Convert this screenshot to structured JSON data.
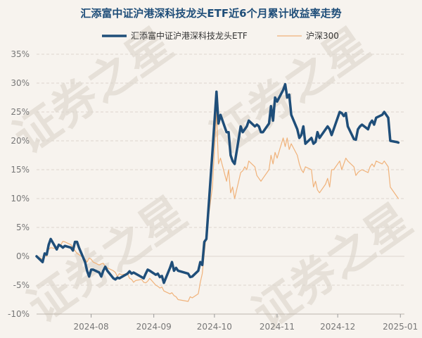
{
  "chart_data": {
    "type": "line",
    "title": "汇添富中证沪港深科技龙头ETF近6个月累计收益率走势",
    "watermark": "证券之星",
    "ylim": [
      -10,
      35
    ],
    "yticks": [
      35,
      30,
      25,
      20,
      15,
      10,
      5,
      0,
      -5,
      -10
    ],
    "ytick_labels": [
      "35%",
      "30%",
      "25%",
      "20%",
      "15%",
      "10%",
      "5%",
      "0%",
      "-5%",
      "-10%"
    ],
    "xlim": [
      "2024-07-05",
      "2025-01-03"
    ],
    "xticks": [
      "2024-08-01",
      "2024-09-01",
      "2024-10-01",
      "2024-11-01",
      "2024-12-01",
      "2025-01-01"
    ],
    "xtick_labels": [
      "2024-08",
      "2024-09",
      "2024-10",
      "2024-11",
      "2024-12",
      "2025-01"
    ],
    "grid": true,
    "legend_position": "top-center",
    "series": [
      {
        "name": "汇添富中证沪港深科技龙头ETF",
        "color": "#1f4e79",
        "points": [
          [
            "2024-07-05",
            0.0
          ],
          [
            "2024-07-08",
            -1.0
          ],
          [
            "2024-07-09",
            0.5
          ],
          [
            "2024-07-10",
            0.3
          ],
          [
            "2024-07-11",
            2.0
          ],
          [
            "2024-07-12",
            3.0
          ],
          [
            "2024-07-15",
            1.2
          ],
          [
            "2024-07-16",
            2.0
          ],
          [
            "2024-07-17",
            1.8
          ],
          [
            "2024-07-18",
            1.5
          ],
          [
            "2024-07-19",
            1.8
          ],
          [
            "2024-07-22",
            1.5
          ],
          [
            "2024-07-23",
            1.0
          ],
          [
            "2024-07-24",
            2.5
          ],
          [
            "2024-07-25",
            2.5
          ],
          [
            "2024-07-26",
            1.5
          ],
          [
            "2024-07-29",
            -1.0
          ],
          [
            "2024-07-30",
            -2.5
          ],
          [
            "2024-07-31",
            -3.5
          ],
          [
            "2024-08-01",
            -2.3
          ],
          [
            "2024-08-02",
            -2.3
          ],
          [
            "2024-08-05",
            -2.8
          ],
          [
            "2024-08-06",
            -3.5
          ],
          [
            "2024-08-07",
            -2.5
          ],
          [
            "2024-08-08",
            -1.8
          ],
          [
            "2024-08-09",
            -2.5
          ],
          [
            "2024-08-12",
            -3.8
          ],
          [
            "2024-08-13",
            -4.0
          ],
          [
            "2024-08-14",
            -3.7
          ],
          [
            "2024-08-15",
            -3.8
          ],
          [
            "2024-08-16",
            -3.6
          ],
          [
            "2024-08-19",
            -3.0
          ],
          [
            "2024-08-20",
            -2.6
          ],
          [
            "2024-08-21",
            -3.0
          ],
          [
            "2024-08-22",
            -2.8
          ],
          [
            "2024-08-23",
            -3.0
          ],
          [
            "2024-08-26",
            -3.6
          ],
          [
            "2024-08-27",
            -3.8
          ],
          [
            "2024-08-28",
            -3.0
          ],
          [
            "2024-08-29",
            -2.3
          ],
          [
            "2024-08-30",
            -2.5
          ],
          [
            "2024-09-02",
            -3.2
          ],
          [
            "2024-09-03",
            -3.0
          ],
          [
            "2024-09-04",
            -3.6
          ],
          [
            "2024-09-05",
            -3.4
          ],
          [
            "2024-09-06",
            -4.6
          ],
          [
            "2024-09-09",
            -2.0
          ],
          [
            "2024-09-10",
            -1.0
          ],
          [
            "2024-09-11",
            -2.5
          ],
          [
            "2024-09-12",
            -2.0
          ],
          [
            "2024-09-13",
            -2.5
          ],
          [
            "2024-09-18",
            -3.0
          ],
          [
            "2024-09-19",
            -3.6
          ],
          [
            "2024-09-20",
            -3.5
          ],
          [
            "2024-09-23",
            -2.5
          ],
          [
            "2024-09-24",
            -1.0
          ],
          [
            "2024-09-25",
            -1.5
          ],
          [
            "2024-09-26",
            2.5
          ],
          [
            "2024-09-27",
            3.0
          ],
          [
            "2024-09-30",
            18.0
          ],
          [
            "2024-10-02",
            28.5
          ],
          [
            "2024-10-03",
            23.0
          ],
          [
            "2024-10-04",
            24.5
          ],
          [
            "2024-10-07",
            21.5
          ],
          [
            "2024-10-08",
            21.5
          ],
          [
            "2024-10-09",
            17.5
          ],
          [
            "2024-10-10",
            16.5
          ],
          [
            "2024-10-11",
            16.0
          ],
          [
            "2024-10-14",
            22.5
          ],
          [
            "2024-10-15",
            21.5
          ],
          [
            "2024-10-16",
            22.0
          ],
          [
            "2024-10-17",
            22.5
          ],
          [
            "2024-10-18",
            23.5
          ],
          [
            "2024-10-21",
            22.5
          ],
          [
            "2024-10-22",
            22.8
          ],
          [
            "2024-10-23",
            22.5
          ],
          [
            "2024-10-24",
            21.5
          ],
          [
            "2024-10-25",
            21.5
          ],
          [
            "2024-10-28",
            23.0
          ],
          [
            "2024-10-29",
            26.0
          ],
          [
            "2024-10-30",
            23.5
          ],
          [
            "2024-10-31",
            27.5
          ],
          [
            "2024-11-01",
            26.8
          ],
          [
            "2024-11-04",
            28.8
          ],
          [
            "2024-11-05",
            29.8
          ],
          [
            "2024-11-06",
            27.5
          ],
          [
            "2024-11-07",
            28.0
          ],
          [
            "2024-11-08",
            24.5
          ],
          [
            "2024-11-11",
            22.0
          ],
          [
            "2024-11-12",
            20.5
          ],
          [
            "2024-11-13",
            21.0
          ],
          [
            "2024-11-14",
            22.5
          ],
          [
            "2024-11-15",
            19.5
          ],
          [
            "2024-11-18",
            20.5
          ],
          [
            "2024-11-19",
            19.5
          ],
          [
            "2024-11-20",
            19.8
          ],
          [
            "2024-11-21",
            21.5
          ],
          [
            "2024-11-22",
            20.5
          ],
          [
            "2024-11-25",
            22.0
          ],
          [
            "2024-11-26",
            22.5
          ],
          [
            "2024-11-27",
            22.0
          ],
          [
            "2024-11-28",
            21.0
          ],
          [
            "2024-11-29",
            22.0
          ],
          [
            "2024-12-02",
            25.0
          ],
          [
            "2024-12-03",
            24.8
          ],
          [
            "2024-12-04",
            24.3
          ],
          [
            "2024-12-05",
            24.8
          ],
          [
            "2024-12-06",
            22.5
          ],
          [
            "2024-12-09",
            20.3
          ],
          [
            "2024-12-10",
            20.2
          ],
          [
            "2024-12-11",
            22.0
          ],
          [
            "2024-12-12",
            22.5
          ],
          [
            "2024-12-13",
            22.8
          ],
          [
            "2024-12-16",
            22.0
          ],
          [
            "2024-12-17",
            23.0
          ],
          [
            "2024-12-18",
            23.5
          ],
          [
            "2024-12-19",
            22.8
          ],
          [
            "2024-12-20",
            24.0
          ],
          [
            "2024-12-23",
            24.5
          ],
          [
            "2024-12-24",
            25.0
          ],
          [
            "2024-12-26",
            24.0
          ],
          [
            "2024-12-27",
            20.0
          ],
          [
            "2024-12-30",
            19.8
          ],
          [
            "2024-12-31",
            19.7
          ]
        ]
      },
      {
        "name": "沪深300",
        "color": "#f0b27a",
        "points": [
          [
            "2024-07-05",
            0.0
          ],
          [
            "2024-07-08",
            -0.5
          ],
          [
            "2024-07-09",
            0.2
          ],
          [
            "2024-07-10",
            0.0
          ],
          [
            "2024-07-11",
            1.2
          ],
          [
            "2024-07-12",
            1.5
          ],
          [
            "2024-07-15",
            1.3
          ],
          [
            "2024-07-16",
            2.0
          ],
          [
            "2024-07-17",
            2.0
          ],
          [
            "2024-07-18",
            2.6
          ],
          [
            "2024-07-19",
            2.5
          ],
          [
            "2024-07-22",
            2.0
          ],
          [
            "2024-07-23",
            1.5
          ],
          [
            "2024-07-24",
            1.0
          ],
          [
            "2024-07-25",
            0.5
          ],
          [
            "2024-07-26",
            0.3
          ],
          [
            "2024-07-29",
            -0.5
          ],
          [
            "2024-07-30",
            -1.0
          ],
          [
            "2024-07-31",
            -0.3
          ],
          [
            "2024-08-01",
            -0.5
          ],
          [
            "2024-08-02",
            -1.0
          ],
          [
            "2024-08-05",
            -1.5
          ],
          [
            "2024-08-06",
            -1.3
          ],
          [
            "2024-08-07",
            -1.2
          ],
          [
            "2024-08-08",
            -1.8
          ],
          [
            "2024-08-09",
            -2.0
          ],
          [
            "2024-08-12",
            -2.5
          ],
          [
            "2024-08-13",
            -2.8
          ],
          [
            "2024-08-14",
            -3.5
          ],
          [
            "2024-08-15",
            -3.0
          ],
          [
            "2024-08-16",
            -3.2
          ],
          [
            "2024-08-19",
            -3.0
          ],
          [
            "2024-08-20",
            -3.8
          ],
          [
            "2024-08-21",
            -4.0
          ],
          [
            "2024-08-22",
            -4.5
          ],
          [
            "2024-08-23",
            -4.2
          ],
          [
            "2024-08-26",
            -4.0
          ],
          [
            "2024-08-27",
            -4.5
          ],
          [
            "2024-08-28",
            -4.6
          ],
          [
            "2024-08-29",
            -4.3
          ],
          [
            "2024-08-30",
            -3.8
          ],
          [
            "2024-09-02",
            -5.0
          ],
          [
            "2024-09-03",
            -5.2
          ],
          [
            "2024-09-04",
            -5.5
          ],
          [
            "2024-09-05",
            -5.3
          ],
          [
            "2024-09-06",
            -6.0
          ],
          [
            "2024-09-09",
            -6.5
          ],
          [
            "2024-09-10",
            -6.3
          ],
          [
            "2024-09-11",
            -6.8
          ],
          [
            "2024-09-12",
            -7.0
          ],
          [
            "2024-09-13",
            -7.5
          ],
          [
            "2024-09-18",
            -7.8
          ],
          [
            "2024-09-19",
            -7.0
          ],
          [
            "2024-09-20",
            -7.2
          ],
          [
            "2024-09-23",
            -6.5
          ],
          [
            "2024-09-24",
            -4.5
          ],
          [
            "2024-09-25",
            -3.0
          ],
          [
            "2024-09-26",
            0.5
          ],
          [
            "2024-09-27",
            4.0
          ],
          [
            "2024-09-30",
            12.0
          ],
          [
            "2024-10-02",
            25.0
          ],
          [
            "2024-10-03",
            16.0
          ],
          [
            "2024-10-04",
            17.0
          ],
          [
            "2024-10-07",
            13.0
          ],
          [
            "2024-10-08",
            15.0
          ],
          [
            "2024-10-09",
            11.0
          ],
          [
            "2024-10-10",
            12.0
          ],
          [
            "2024-10-11",
            10.0
          ],
          [
            "2024-10-14",
            14.5
          ],
          [
            "2024-10-15",
            14.8
          ],
          [
            "2024-10-16",
            15.5
          ],
          [
            "2024-10-17",
            15.0
          ],
          [
            "2024-10-18",
            16.5
          ],
          [
            "2024-10-21",
            15.5
          ],
          [
            "2024-10-22",
            14.0
          ],
          [
            "2024-10-23",
            13.5
          ],
          [
            "2024-10-24",
            13.0
          ],
          [
            "2024-10-25",
            13.5
          ],
          [
            "2024-10-28",
            15.0
          ],
          [
            "2024-10-29",
            17.5
          ],
          [
            "2024-10-30",
            16.0
          ],
          [
            "2024-10-31",
            18.0
          ],
          [
            "2024-11-01",
            17.0
          ],
          [
            "2024-11-04",
            20.5
          ],
          [
            "2024-11-05",
            19.0
          ],
          [
            "2024-11-06",
            20.5
          ],
          [
            "2024-11-07",
            18.5
          ],
          [
            "2024-11-08",
            19.5
          ],
          [
            "2024-11-11",
            17.5
          ],
          [
            "2024-11-12",
            16.0
          ],
          [
            "2024-11-13",
            15.0
          ],
          [
            "2024-11-14",
            14.5
          ],
          [
            "2024-11-15",
            15.5
          ],
          [
            "2024-11-18",
            15.0
          ],
          [
            "2024-11-19",
            12.0
          ],
          [
            "2024-11-20",
            13.0
          ],
          [
            "2024-11-21",
            11.5
          ],
          [
            "2024-11-22",
            11.0
          ],
          [
            "2024-11-25",
            12.5
          ],
          [
            "2024-11-26",
            13.5
          ],
          [
            "2024-11-27",
            12.0
          ],
          [
            "2024-11-28",
            15.0
          ],
          [
            "2024-11-29",
            15.0
          ],
          [
            "2024-12-02",
            16.5
          ],
          [
            "2024-12-03",
            15.0
          ],
          [
            "2024-12-04",
            16.0
          ],
          [
            "2024-12-05",
            17.0
          ],
          [
            "2024-12-06",
            16.5
          ],
          [
            "2024-12-09",
            15.5
          ],
          [
            "2024-12-10",
            14.0
          ],
          [
            "2024-12-11",
            14.5
          ],
          [
            "2024-12-12",
            14.8
          ],
          [
            "2024-12-13",
            15.0
          ],
          [
            "2024-12-16",
            14.5
          ],
          [
            "2024-12-17",
            15.5
          ],
          [
            "2024-12-18",
            16.0
          ],
          [
            "2024-12-19",
            15.5
          ],
          [
            "2024-12-20",
            16.5
          ],
          [
            "2024-12-23",
            16.0
          ],
          [
            "2024-12-24",
            16.5
          ],
          [
            "2024-12-26",
            15.5
          ],
          [
            "2024-12-27",
            12.0
          ],
          [
            "2024-12-30",
            10.5
          ],
          [
            "2024-12-31",
            10.0
          ]
        ]
      }
    ]
  }
}
